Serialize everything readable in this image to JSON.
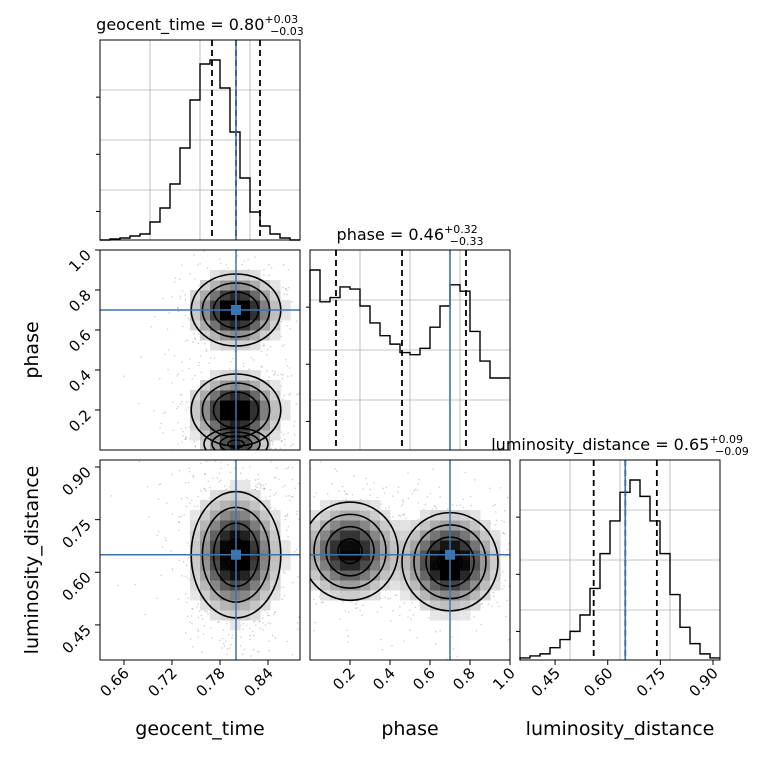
{
  "chart_data": {
    "type": "corner",
    "parameters": [
      "geocent_time",
      "phase",
      "luminosity_distance"
    ],
    "truths": {
      "geocent_time": 0.8,
      "phase": 0.7,
      "luminosity_distance": 0.65
    },
    "truth_color": "#3b75af",
    "grid": true,
    "titles": [
      {
        "param": "geocent_time",
        "text": "geocent_time = 0.80",
        "plus": "+0.03",
        "minus": "−0.03"
      },
      {
        "param": "phase",
        "text": "phase = 0.46",
        "plus": "+0.32",
        "minus": "−0.33"
      },
      {
        "param": "luminosity_distance",
        "text": "luminosity_distance = 0.65",
        "plus": "+0.09",
        "minus": "−0.09"
      }
    ],
    "axis_labels": {
      "x": [
        "geocent_time",
        "phase",
        "luminosity_distance"
      ],
      "y": [
        "phase",
        "luminosity_distance"
      ]
    },
    "ranges": {
      "geocent_time": [
        0.63,
        0.88
      ],
      "phase": [
        0.0,
        1.0
      ],
      "luminosity_distance": [
        0.35,
        0.92
      ]
    },
    "ticks": {
      "geocent_time": [
        "0.66",
        "0.72",
        "0.78",
        "0.84"
      ],
      "phase_x": [
        "0.2",
        "0.4",
        "0.6",
        "0.8",
        "1.0"
      ],
      "phase_y": [
        "0.2",
        "0.4",
        "0.6",
        "0.8",
        "1.0"
      ],
      "luminosity_distance": [
        "0.45",
        "0.60",
        "0.75",
        "0.90"
      ]
    },
    "histograms": [
      {
        "param": "geocent_time",
        "bin_start": 0.63,
        "bin_width": 0.0125,
        "counts": [
          0,
          0.5,
          1,
          2,
          3,
          9,
          16,
          28,
          46,
          70,
          88,
          90,
          76,
          54,
          31,
          14,
          7,
          3,
          1,
          0
        ],
        "quantiles": [
          0.77,
          0.8,
          0.83
        ]
      },
      {
        "param": "phase",
        "bin_start": 0.0,
        "bin_width": 0.05,
        "counts": [
          85,
          70,
          72,
          77,
          76,
          68,
          60,
          54,
          50,
          46,
          45,
          48,
          58,
          68,
          78,
          75,
          56,
          42,
          34,
          34
        ],
        "quantiles": [
          0.13,
          0.46,
          0.78
        ]
      },
      {
        "param": "luminosity_distance",
        "bin_start": 0.35,
        "bin_width": 0.0285,
        "counts": [
          1,
          2,
          3,
          6,
          10,
          14,
          22,
          35,
          52,
          68,
          82,
          88,
          80,
          68,
          52,
          32,
          16,
          8,
          3,
          1
        ],
        "quantiles": [
          0.56,
          0.65,
          0.74
        ]
      }
    ],
    "densities_2d": [
      {
        "x": "geocent_time",
        "y": "phase",
        "modes": [
          {
            "x": 0.8,
            "y": 0.7,
            "sx": 0.028,
            "sy": 0.09,
            "w": 1.0
          },
          {
            "x": 0.8,
            "y": 0.2,
            "sx": 0.028,
            "sy": 0.09,
            "w": 1.0
          },
          {
            "x": 0.8,
            "y": 0.03,
            "sx": 0.02,
            "sy": 0.04,
            "w": 0.55
          }
        ]
      },
      {
        "x": "geocent_time",
        "y": "luminosity_distance",
        "modes": [
          {
            "x": 0.8,
            "y": 0.65,
            "sx": 0.028,
            "sy": 0.09,
            "w": 1.0
          }
        ]
      },
      {
        "x": "phase",
        "y": "luminosity_distance",
        "modes": [
          {
            "x": 0.2,
            "y": 0.66,
            "sx": 0.12,
            "sy": 0.07,
            "w": 0.85
          },
          {
            "x": 0.7,
            "y": 0.63,
            "sx": 0.12,
            "sy": 0.07,
            "w": 1.0
          }
        ]
      }
    ]
  }
}
